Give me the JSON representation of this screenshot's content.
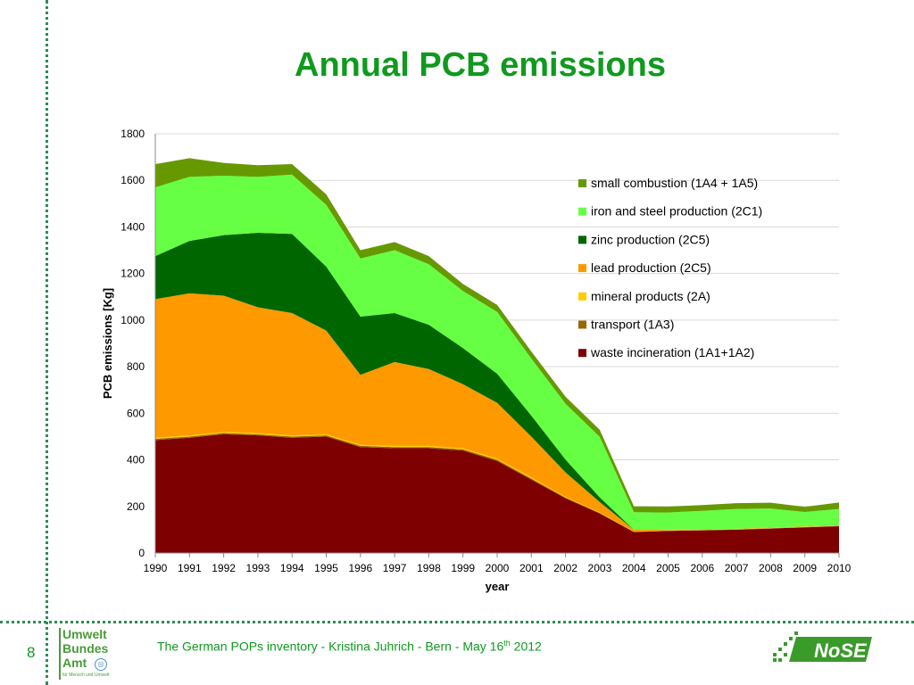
{
  "slide": {
    "title": "Annual PCB emissions",
    "page_number": "8",
    "footer_main": "The German POPs inventory  -  Kristina Juhrich - Bern - May 16",
    "footer_sup": "th",
    "footer_year": " 2012",
    "logo_left": {
      "line1": "Umwelt",
      "line2": "Bundes",
      "line3": "Amt",
      "sub": "für Mensch und Umwelt"
    },
    "logo_right": "NoSE"
  },
  "colors": {
    "accent": "#0f9a1e",
    "dotted_rule": "#2e8b57"
  },
  "chart_data": {
    "type": "area",
    "stacked": true,
    "title": "",
    "xlabel": "year",
    "ylabel": "PCB emissions [Kg]",
    "ylim": [
      0,
      1800
    ],
    "yticks": [
      0,
      200,
      400,
      600,
      800,
      1000,
      1200,
      1400,
      1600,
      1800
    ],
    "grid": true,
    "legend_position": "right",
    "categories": [
      "1990",
      "1991",
      "1992",
      "1993",
      "1994",
      "1995",
      "1996",
      "1997",
      "1998",
      "1999",
      "2000",
      "2001",
      "2002",
      "2003",
      "2004",
      "2005",
      "2006",
      "2007",
      "2008",
      "2009",
      "2010"
    ],
    "series": [
      {
        "name": "waste incineration (1A1+1A2)",
        "color": "#7f0000",
        "values": [
          485,
          495,
          510,
          505,
          495,
          500,
          455,
          450,
          450,
          440,
          395,
          315,
          235,
          170,
          90,
          95,
          97,
          100,
          105,
          110,
          115
        ]
      },
      {
        "name": "transport (1A3)",
        "color": "#996600",
        "values": [
          5,
          5,
          5,
          5,
          5,
          5,
          5,
          5,
          5,
          5,
          5,
          5,
          3,
          2,
          1,
          1,
          1,
          1,
          1,
          1,
          1
        ]
      },
      {
        "name": "mineral products (2A)",
        "color": "#ffcc00",
        "values": [
          5,
          5,
          5,
          5,
          5,
          5,
          5,
          5,
          5,
          5,
          5,
          5,
          3,
          2,
          1,
          1,
          1,
          1,
          1,
          1,
          1
        ]
      },
      {
        "name": "lead production (2C5)",
        "color": "#ff9900",
        "values": [
          595,
          610,
          585,
          540,
          525,
          445,
          300,
          360,
          330,
          275,
          240,
          175,
          105,
          45,
          8,
          2,
          2,
          2,
          2,
          2,
          2
        ]
      },
      {
        "name": "zinc production (2C5)",
        "color": "#006600",
        "values": [
          185,
          225,
          260,
          320,
          340,
          275,
          250,
          210,
          190,
          155,
          125,
          90,
          55,
          20,
          0,
          0,
          0,
          0,
          0,
          0,
          0
        ]
      },
      {
        "name": "iron and steel production (2C1)",
        "color": "#66ff44",
        "values": [
          295,
          275,
          255,
          240,
          255,
          265,
          250,
          270,
          260,
          245,
          265,
          245,
          240,
          260,
          75,
          75,
          80,
          85,
          82,
          62,
          70
        ]
      },
      {
        "name": "small combustion (1A4 + 1A5)",
        "color": "#669900",
        "values": [
          100,
          80,
          55,
          50,
          45,
          45,
          35,
          35,
          35,
          30,
          30,
          30,
          30,
          30,
          25,
          25,
          25,
          25,
          25,
          22,
          28
        ]
      }
    ]
  }
}
